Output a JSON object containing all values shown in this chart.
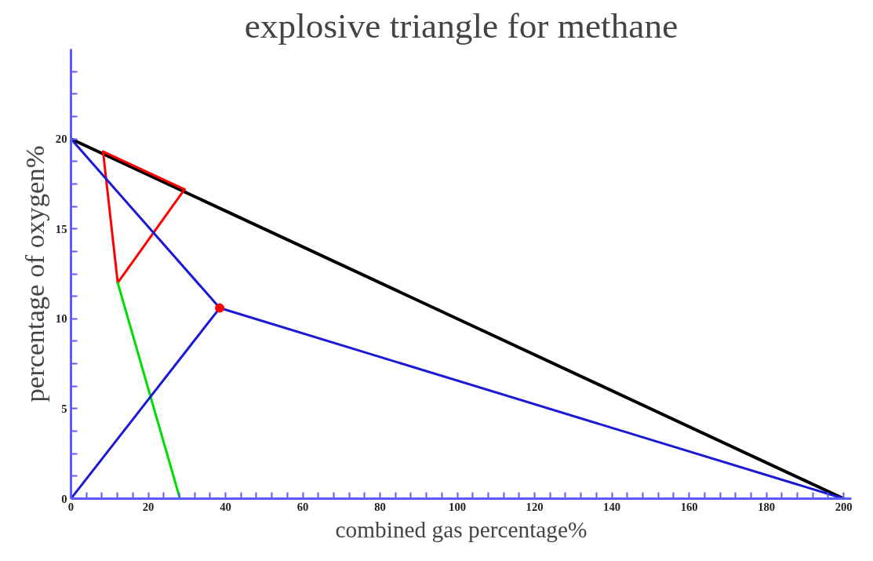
{
  "chart_data": {
    "type": "line",
    "title": "explosive triangle for methane",
    "xlabel": "combined gas percentage%",
    "ylabel": "percentage of oxygen%",
    "xlim": [
      0,
      202
    ],
    "ylim": [
      0,
      25
    ],
    "xticks": [
      0,
      20,
      40,
      60,
      80,
      100,
      120,
      140,
      160,
      180,
      200
    ],
    "yticks": [
      0,
      5,
      10,
      15,
      20
    ],
    "grid": false,
    "line_style": "solid",
    "marker": "none",
    "series": [
      {
        "color": "#000000",
        "x": [
          0,
          200
        ],
        "values": [
          20,
          0
        ]
      },
      {
        "color": "#ff0000",
        "x": [
          8.3,
          29.4
        ],
        "values": [
          19.3,
          17.2
        ]
      },
      {
        "color": "#ff0000",
        "x": [
          29.4,
          12.1
        ],
        "values": [
          17.2,
          12.0
        ]
      },
      {
        "color": "#ff0000",
        "x": [
          12.1,
          8.3
        ],
        "values": [
          12.0,
          19.3
        ]
      },
      {
        "color": "#00dd00",
        "x": [
          12.1,
          28.2
        ],
        "values": [
          12.0,
          0
        ]
      },
      {
        "color": "#1a1ad6",
        "x": [
          0,
          38.5,
          0
        ],
        "values": [
          20,
          10.6,
          0
        ]
      },
      {
        "color": "#1a1ad6",
        "x": [
          38.5,
          200
        ],
        "values": [
          10.6,
          0
        ]
      },
      {
        "type": "scatter",
        "marker": "circle",
        "color": "#ff0000",
        "x": [
          38.5
        ],
        "values": [
          10.6
        ]
      }
    ]
  }
}
